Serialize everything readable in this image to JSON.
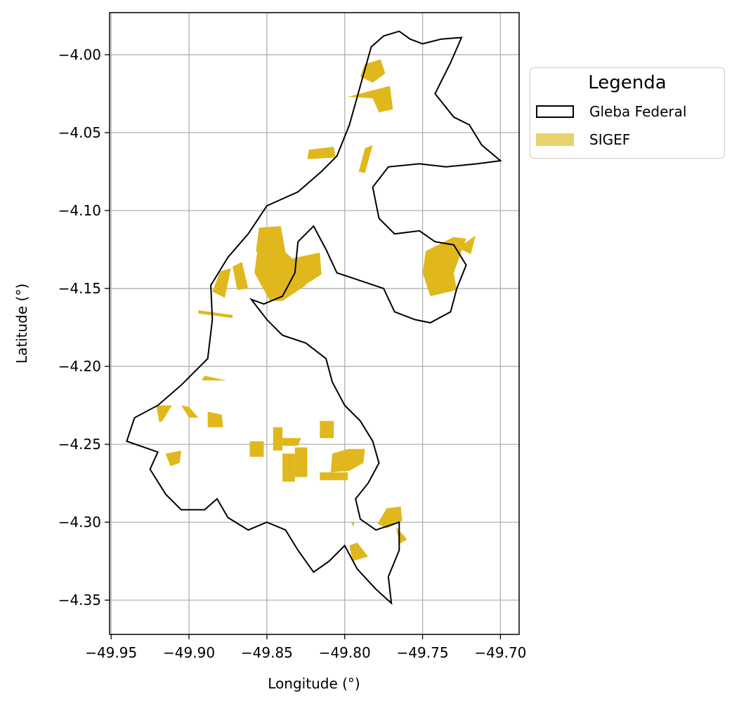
{
  "chart_data": {
    "type": "map",
    "xlabel": "Longitude (°)",
    "ylabel": "Latitude (°)",
    "xlim": [
      -49.951,
      -49.688
    ],
    "ylim": [
      -4.372,
      -3.973
    ],
    "xticks": [
      -49.95,
      -49.9,
      -49.85,
      -49.8,
      -49.75,
      -49.7
    ],
    "xtick_labels": [
      "−49.95",
      "−49.90",
      "−49.85",
      "−49.80",
      "−49.75",
      "−49.70"
    ],
    "yticks": [
      -4.0,
      -4.05,
      -4.1,
      -4.15,
      -4.2,
      -4.25,
      -4.3,
      -4.35
    ],
    "ytick_labels": [
      "−4.00",
      "−4.05",
      "−4.10",
      "−4.15",
      "−4.20",
      "−4.25",
      "−4.30",
      "−4.35"
    ],
    "grid": true,
    "legend": {
      "title": "Legenda",
      "placement": "outside upper right",
      "entries": [
        {
          "label": "Gleba Federal",
          "style": "outline",
          "color": "#000000"
        },
        {
          "label": "SIGEF",
          "style": "fill",
          "color": "#e8d26d"
        }
      ]
    },
    "colors": {
      "gleba_outline": "#000000",
      "sigef_fill": "#e0b81d",
      "grid": "#b0b0b0"
    },
    "gleba_outline_approx": [
      [
        -49.783,
        -3.995
      ],
      [
        -49.775,
        -3.988
      ],
      [
        -49.765,
        -3.985
      ],
      [
        -49.758,
        -3.99
      ],
      [
        -49.75,
        -3.993
      ],
      [
        -49.738,
        -3.99
      ],
      [
        -49.725,
        -3.989
      ],
      [
        -49.732,
        -4.005
      ],
      [
        -49.742,
        -4.025
      ],
      [
        -49.73,
        -4.04
      ],
      [
        -49.72,
        -4.045
      ],
      [
        -49.712,
        -4.058
      ],
      [
        -49.7,
        -4.068
      ],
      [
        -49.715,
        -4.07
      ],
      [
        -49.735,
        -4.072
      ],
      [
        -49.752,
        -4.07
      ],
      [
        -49.772,
        -4.072
      ],
      [
        -49.782,
        -4.085
      ],
      [
        -49.778,
        -4.105
      ],
      [
        -49.768,
        -4.115
      ],
      [
        -49.752,
        -4.113
      ],
      [
        -49.742,
        -4.12
      ],
      [
        -49.73,
        -4.122
      ],
      [
        -49.722,
        -4.135
      ],
      [
        -49.728,
        -4.15
      ],
      [
        -49.732,
        -4.165
      ],
      [
        -49.745,
        -4.172
      ],
      [
        -49.755,
        -4.17
      ],
      [
        -49.768,
        -4.165
      ],
      [
        -49.775,
        -4.15
      ],
      [
        -49.79,
        -4.145
      ],
      [
        -49.805,
        -4.14
      ],
      [
        -49.812,
        -4.125
      ],
      [
        -49.82,
        -4.11
      ],
      [
        -49.83,
        -4.12
      ],
      [
        -49.832,
        -4.14
      ],
      [
        -49.84,
        -4.155
      ],
      [
        -49.852,
        -4.16
      ],
      [
        -49.86,
        -4.157
      ],
      [
        -49.85,
        -4.17
      ],
      [
        -49.84,
        -4.18
      ],
      [
        -49.825,
        -4.185
      ],
      [
        -49.812,
        -4.195
      ],
      [
        -49.808,
        -4.21
      ],
      [
        -49.8,
        -4.225
      ],
      [
        -49.79,
        -4.235
      ],
      [
        -49.782,
        -4.248
      ],
      [
        -49.778,
        -4.262
      ],
      [
        -49.785,
        -4.275
      ],
      [
        -49.793,
        -4.285
      ],
      [
        -49.79,
        -4.298
      ],
      [
        -49.78,
        -4.305
      ],
      [
        -49.765,
        -4.3
      ],
      [
        -49.765,
        -4.318
      ],
      [
        -49.772,
        -4.335
      ],
      [
        -49.77,
        -4.352
      ],
      [
        -49.78,
        -4.343
      ],
      [
        -49.792,
        -4.33
      ],
      [
        -49.8,
        -4.315
      ],
      [
        -49.81,
        -4.325
      ],
      [
        -49.82,
        -4.332
      ],
      [
        -49.83,
        -4.318
      ],
      [
        -49.838,
        -4.305
      ],
      [
        -49.85,
        -4.3
      ],
      [
        -49.862,
        -4.305
      ],
      [
        -49.875,
        -4.297
      ],
      [
        -49.882,
        -4.285
      ],
      [
        -49.89,
        -4.292
      ],
      [
        -49.905,
        -4.292
      ],
      [
        -49.915,
        -4.282
      ],
      [
        -49.925,
        -4.266
      ],
      [
        -49.92,
        -4.255
      ],
      [
        -49.94,
        -4.248
      ],
      [
        -49.935,
        -4.233
      ],
      [
        -49.92,
        -4.225
      ],
      [
        -49.905,
        -4.212
      ],
      [
        -49.888,
        -4.195
      ],
      [
        -49.885,
        -4.17
      ],
      [
        -49.886,
        -4.148
      ],
      [
        -49.875,
        -4.13
      ],
      [
        -49.862,
        -4.115
      ],
      [
        -49.85,
        -4.097
      ],
      [
        -49.83,
        -4.088
      ],
      [
        -49.815,
        -4.075
      ],
      [
        -49.805,
        -4.065
      ],
      [
        -49.797,
        -4.045
      ],
      [
        -49.79,
        -4.02
      ],
      [
        -49.783,
        -3.995
      ]
    ]
  }
}
